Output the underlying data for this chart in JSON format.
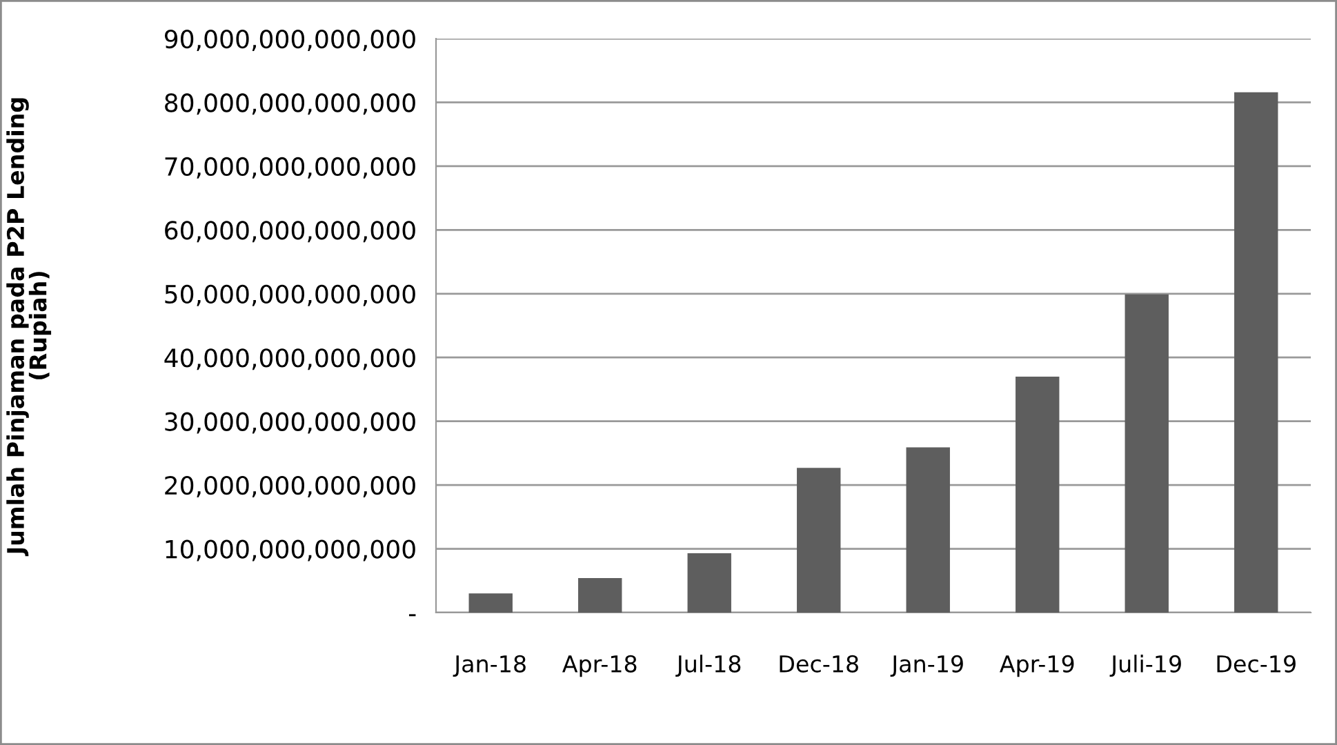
{
  "chart_data": {
    "type": "bar",
    "ylabel": "Jumlah Pinjaman pada P2P Lending\n(Rupiah)",
    "categories": [
      "Jan-18",
      "Apr-18",
      "Jul-18",
      "Dec-18",
      "Jan-19",
      "Apr-19",
      "Juli-19",
      "Dec-19"
    ],
    "values": [
      3000000000000,
      5400000000000,
      9300000000000,
      22700000000000,
      25900000000000,
      37000000000000,
      49900000000000,
      81600000000000
    ],
    "color": "#5e5e5e",
    "ylim": [
      0,
      90000000000000
    ],
    "yticks": [
      {
        "value": 0,
        "label": "-"
      },
      {
        "value": 10000000000000,
        "label": "10,000,000,000,000"
      },
      {
        "value": 20000000000000,
        "label": "20,000,000,000,000"
      },
      {
        "value": 30000000000000,
        "label": "30,000,000,000,000"
      },
      {
        "value": 40000000000000,
        "label": "40,000,000,000,000"
      },
      {
        "value": 50000000000000,
        "label": "50,000,000,000,000"
      },
      {
        "value": 60000000000000,
        "label": "60,000,000,000,000"
      },
      {
        "value": 70000000000000,
        "label": "70,000,000,000,000"
      },
      {
        "value": 80000000000000,
        "label": "80,000,000,000,000"
      },
      {
        "value": 90000000000000,
        "label": "90,000,000,000,000"
      }
    ],
    "grid": "y"
  }
}
